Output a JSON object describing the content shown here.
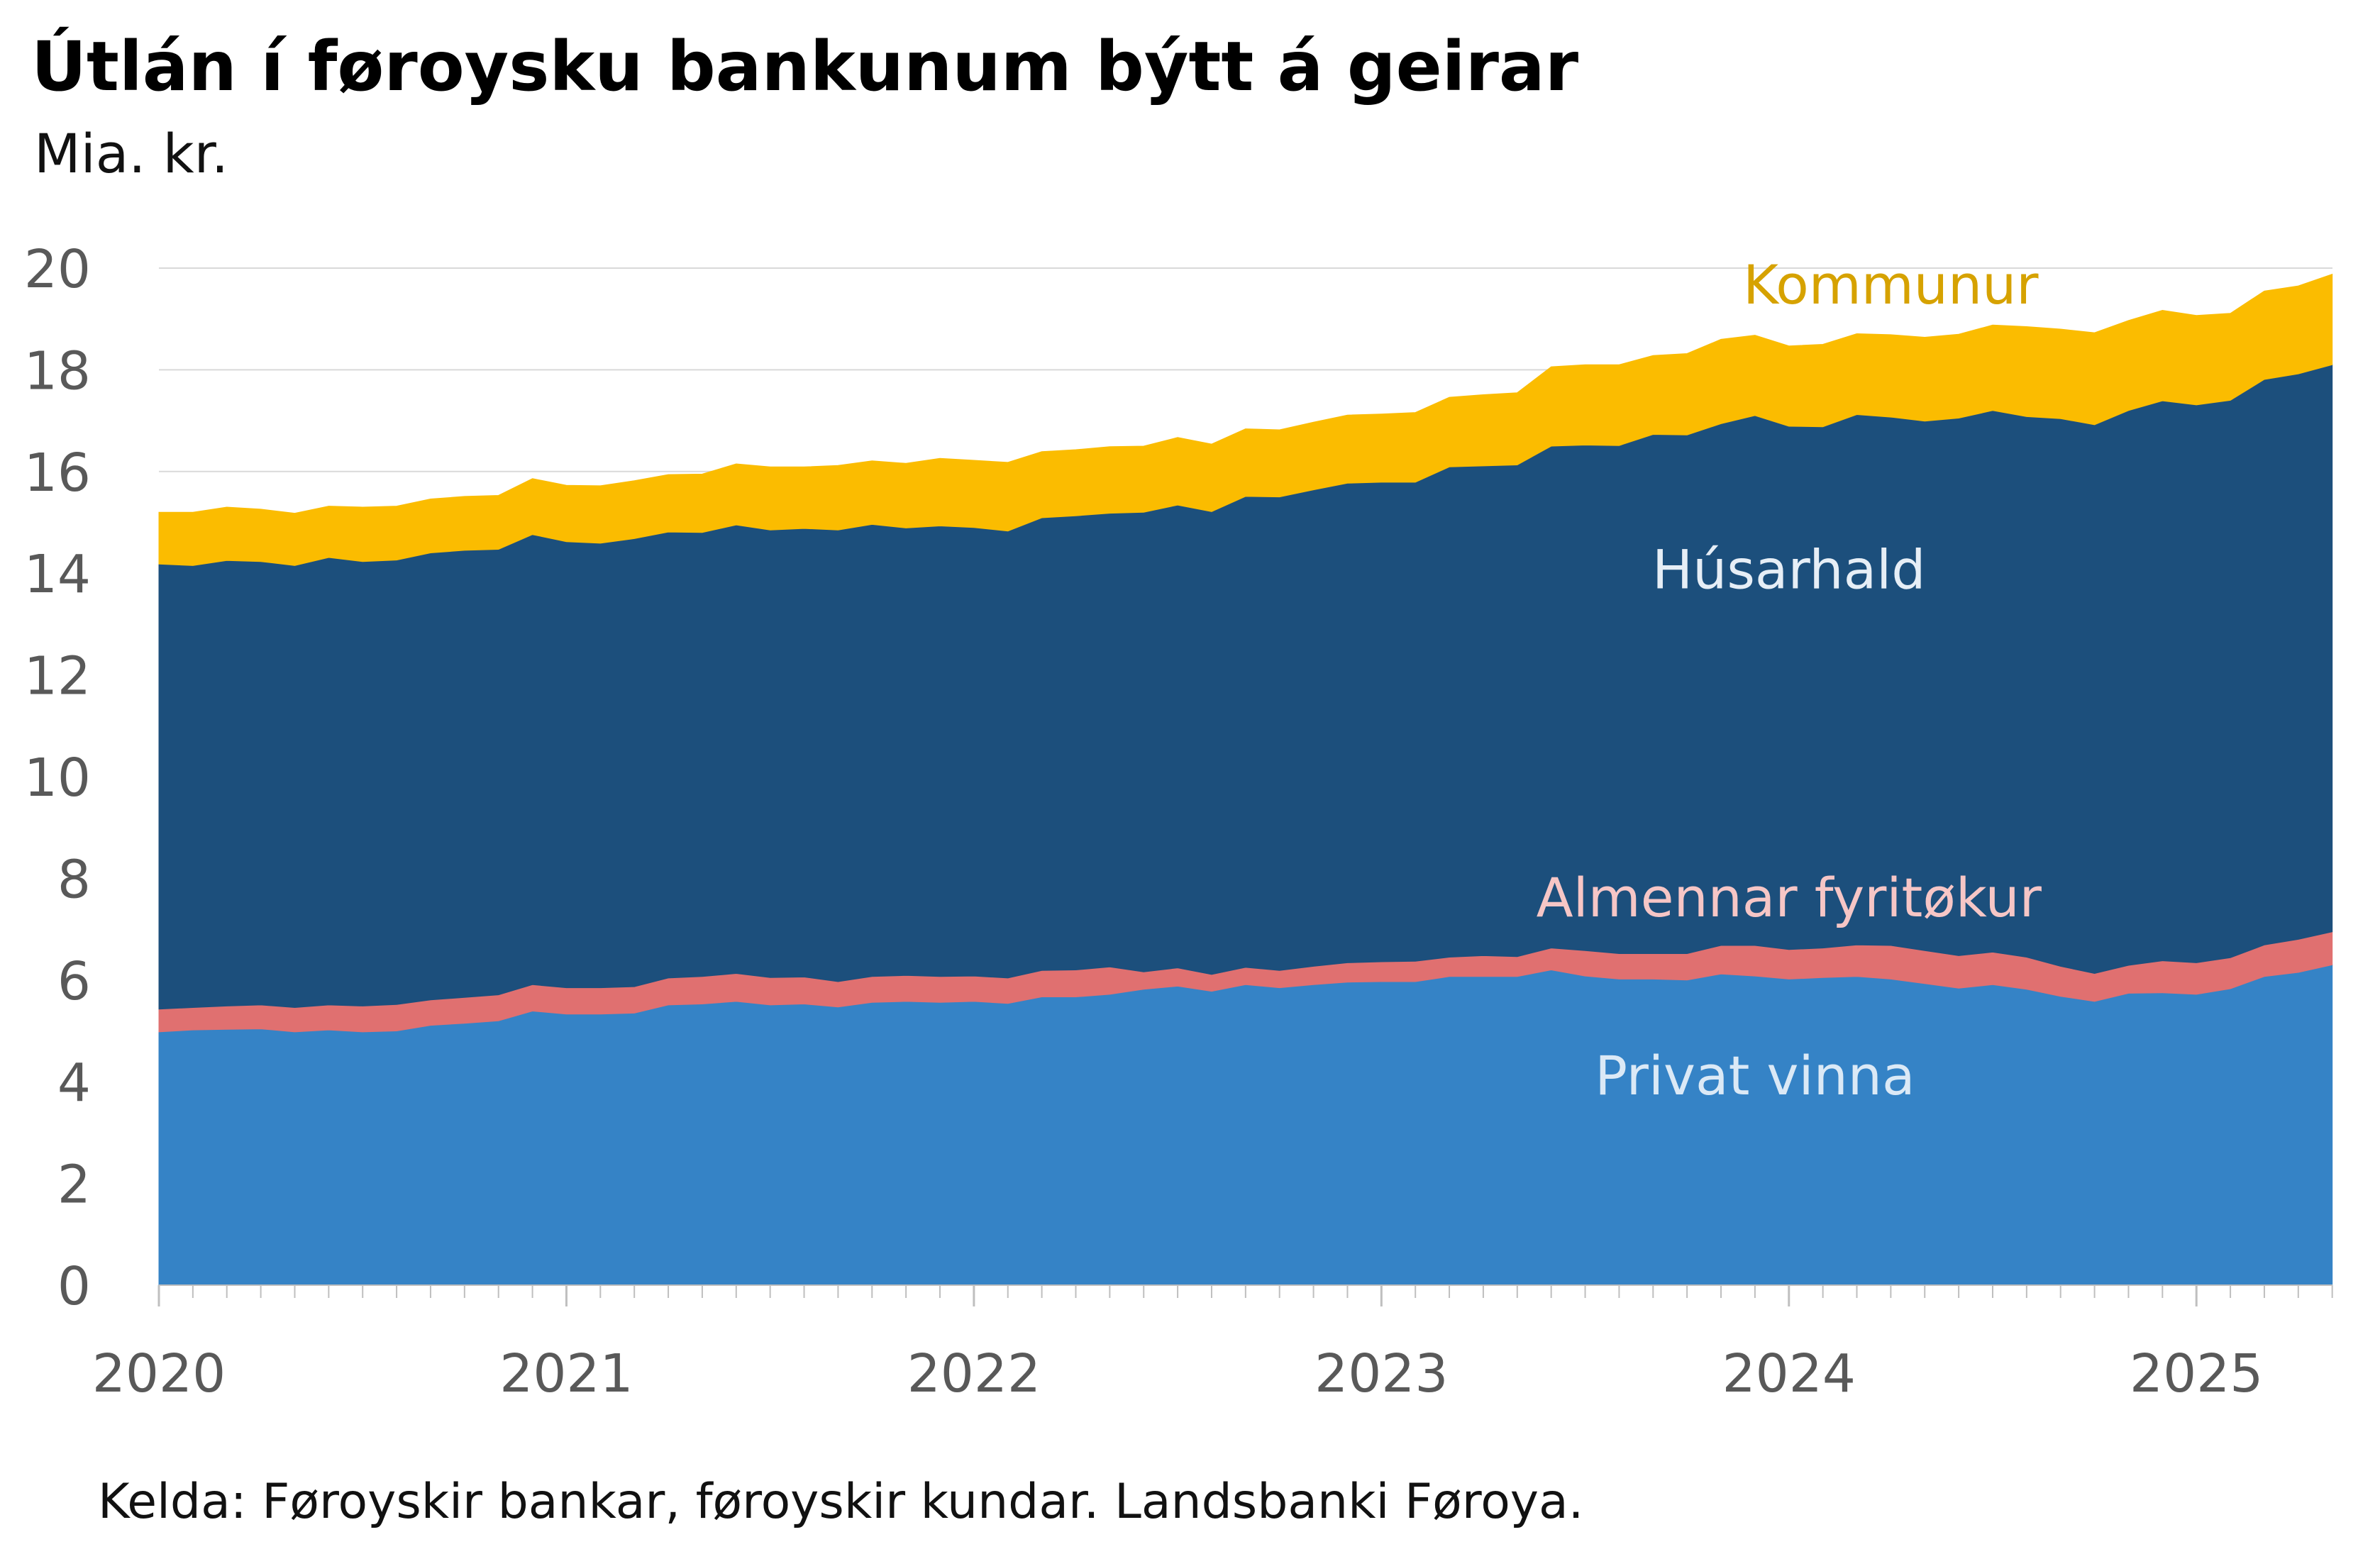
{
  "title": "Útlán í føroysku bankunum býtt á geirar",
  "subtitle": "Mia. kr.",
  "source": "Kelda: Føroyskir bankar, føroyskir kundar. Landsbanki Føroya.",
  "chart_data": {
    "type": "area",
    "stacked": true,
    "x_start": "2020-01",
    "x_end": "2025-05",
    "x_frequency": "monthly",
    "x_tick_labels": [
      "2020",
      "2021",
      "2022",
      "2023",
      "2024",
      "2025"
    ],
    "ylim": [
      0,
      20
    ],
    "y_ticks": [
      0,
      2,
      4,
      6,
      8,
      10,
      12,
      14,
      16,
      18,
      20
    ],
    "grid": true,
    "series": [
      {
        "name": "Privat vinna",
        "color": "#3583c6",
        "label_color": "#dbe9f6",
        "values": [
          4.98,
          5.02,
          5.03,
          5.04,
          4.98,
          5.02,
          4.98,
          5.0,
          5.11,
          5.15,
          5.2,
          5.39,
          5.33,
          5.33,
          5.35,
          5.51,
          5.53,
          5.58,
          5.51,
          5.53,
          5.47,
          5.56,
          5.58,
          5.56,
          5.58,
          5.54,
          5.67,
          5.67,
          5.72,
          5.82,
          5.88,
          5.78,
          5.91,
          5.85,
          5.91,
          5.96,
          5.97,
          5.97,
          6.07,
          6.07,
          6.07,
          6.2,
          6.08,
          6.02,
          6.02,
          6.0,
          6.12,
          6.08,
          6.02,
          6.05,
          6.07,
          6.02,
          5.93,
          5.84,
          5.91,
          5.82,
          5.68,
          5.58,
          5.74,
          5.75,
          5.72,
          5.83,
          6.07,
          6.15,
          6.3
        ]
      },
      {
        "name": "Almennar fyritøkur",
        "color": "#e07070",
        "label_color": "#f6c6c6",
        "values": [
          0.45,
          0.44,
          0.46,
          0.47,
          0.48,
          0.49,
          0.51,
          0.52,
          0.5,
          0.51,
          0.51,
          0.52,
          0.52,
          0.52,
          0.52,
          0.53,
          0.54,
          0.55,
          0.54,
          0.53,
          0.5,
          0.51,
          0.51,
          0.51,
          0.5,
          0.5,
          0.52,
          0.53,
          0.54,
          0.34,
          0.36,
          0.33,
          0.34,
          0.34,
          0.36,
          0.38,
          0.39,
          0.4,
          0.38,
          0.41,
          0.39,
          0.43,
          0.5,
          0.5,
          0.5,
          0.52,
          0.56,
          0.6,
          0.58,
          0.58,
          0.62,
          0.66,
          0.65,
          0.64,
          0.64,
          0.63,
          0.59,
          0.55,
          0.55,
          0.63,
          0.62,
          0.61,
          0.62,
          0.65,
          0.65
        ]
      },
      {
        "name": "Húsarhald",
        "color": "#1c4f7c",
        "label_color": "#e6eef6",
        "values": [
          8.75,
          8.69,
          8.76,
          8.72,
          8.69,
          8.8,
          8.74,
          8.74,
          8.79,
          8.79,
          8.76,
          8.85,
          8.77,
          8.74,
          8.81,
          8.77,
          8.73,
          8.82,
          8.8,
          8.82,
          8.88,
          8.89,
          8.8,
          8.86,
          8.82,
          8.79,
          8.9,
          8.93,
          8.92,
          9.04,
          9.1,
          9.1,
          9.26,
          9.31,
          9.37,
          9.43,
          9.43,
          9.42,
          9.64,
          9.63,
          9.67,
          9.87,
          9.94,
          9.99,
          10.21,
          10.2,
          10.26,
          10.42,
          10.29,
          10.25,
          10.43,
          10.39,
          10.41,
          10.57,
          10.65,
          10.63,
          10.77,
          10.79,
          10.91,
          11.01,
          10.97,
          10.96,
          11.12,
          11.12,
          11.15
        ]
      },
      {
        "name": "Kommunur",
        "color": "#fbbc00",
        "label_color": "#d6a200",
        "values": [
          1.02,
          1.05,
          1.05,
          1.03,
          1.03,
          1.01,
          1.07,
          1.06,
          1.06,
          1.06,
          1.06,
          1.1,
          1.11,
          1.13,
          1.14,
          1.13,
          1.15,
          1.2,
          1.24,
          1.21,
          1.27,
          1.25,
          1.27,
          1.33,
          1.32,
          1.35,
          1.3,
          1.3,
          1.31,
          1.3,
          1.33,
          1.33,
          1.33,
          1.32,
          1.33,
          1.34,
          1.34,
          1.37,
          1.37,
          1.4,
          1.42,
          1.56,
          1.58,
          1.59,
          1.55,
          1.6,
          1.66,
          1.58,
          1.58,
          1.62,
          1.59,
          1.62,
          1.65,
          1.65,
          1.68,
          1.77,
          1.76,
          1.81,
          1.77,
          1.78,
          1.76,
          1.71,
          1.74,
          1.73,
          1.78
        ]
      }
    ]
  }
}
